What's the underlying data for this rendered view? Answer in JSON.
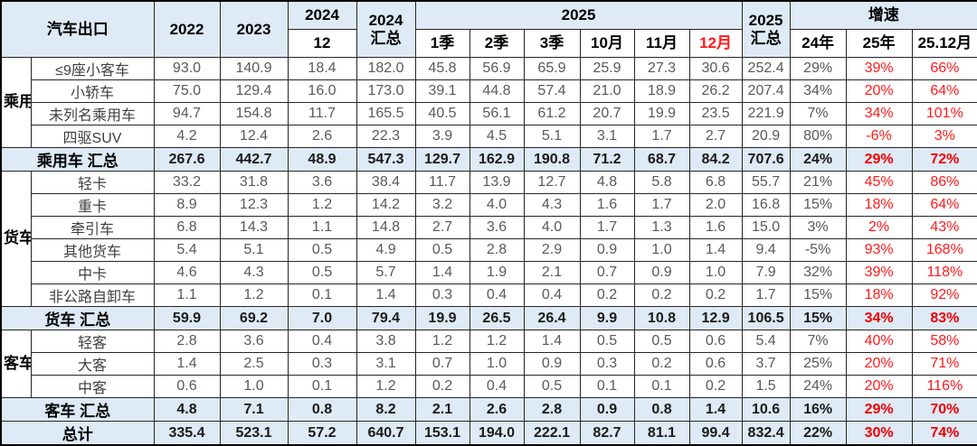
{
  "colors": {
    "header_bg": "#deeaf6",
    "summary_bg": "#deeaf6",
    "accent_red": "#ff1a1a",
    "number_gray": "#595959",
    "border": "#262626"
  },
  "chart_data": {
    "type": "table",
    "title": "汽车出口",
    "header": {
      "corner": "汽车出口",
      "y2022": "2022",
      "y2023": "2023",
      "y2024": "2024",
      "y2024_sub": "12",
      "y2024_total_l1": "2024",
      "y2024_total_l2": "汇总",
      "y2025": "2025",
      "sub2025": [
        "1季",
        "2季",
        "3季",
        "10月",
        "11月",
        "12月"
      ],
      "y2025_total_l1": "2025",
      "y2025_total_l2": "汇总",
      "growth": "增速",
      "growth_sub": [
        "24年",
        "25年",
        "25.12月"
      ]
    },
    "column_keys": [
      "2022",
      "2023",
      "2024-12",
      "2024汇总",
      "2025-1季",
      "2025-2季",
      "2025-3季",
      "2025-10月",
      "2025-11月",
      "2025-12月",
      "2025汇总",
      "增速24年",
      "增速25年",
      "增速25.12月"
    ],
    "groups": [
      {
        "label": "乘用车",
        "start": 0,
        "span": 4
      },
      {
        "label": "货车",
        "start": 5,
        "span": 6
      },
      {
        "label": "客车",
        "start": 12,
        "span": 3
      }
    ],
    "rows": [
      {
        "label": "≤9座小客车",
        "summary": false,
        "values": [
          "93.0",
          "140.9",
          "18.4",
          "182.0",
          "45.8",
          "56.9",
          "65.9",
          "25.9",
          "27.3",
          "30.6",
          "252.4",
          "29%",
          "39%",
          "66%"
        ]
      },
      {
        "label": "小轿车",
        "summary": false,
        "values": [
          "75.0",
          "129.4",
          "16.0",
          "173.0",
          "39.1",
          "44.8",
          "57.4",
          "21.0",
          "18.9",
          "26.2",
          "207.4",
          "34%",
          "20%",
          "64%"
        ]
      },
      {
        "label": "未列名乘用车",
        "summary": false,
        "values": [
          "94.7",
          "154.8",
          "11.7",
          "165.5",
          "40.5",
          "56.1",
          "61.2",
          "20.7",
          "19.9",
          "23.5",
          "221.9",
          "7%",
          "34%",
          "101%"
        ]
      },
      {
        "label": "四驱SUV",
        "summary": false,
        "values": [
          "4.2",
          "12.4",
          "2.6",
          "22.3",
          "3.9",
          "4.5",
          "5.1",
          "3.1",
          "1.7",
          "2.7",
          "20.9",
          "80%",
          "-6%",
          "3%"
        ]
      },
      {
        "label": "乘用车 汇总",
        "summary": true,
        "values": [
          "267.6",
          "442.7",
          "48.9",
          "547.3",
          "129.7",
          "162.9",
          "190.8",
          "71.2",
          "68.7",
          "84.2",
          "707.6",
          "24%",
          "29%",
          "72%"
        ]
      },
      {
        "label": "轻卡",
        "summary": false,
        "values": [
          "33.2",
          "31.8",
          "3.6",
          "38.4",
          "11.7",
          "13.9",
          "12.7",
          "4.8",
          "5.8",
          "6.8",
          "55.7",
          "21%",
          "45%",
          "86%"
        ]
      },
      {
        "label": "重卡",
        "summary": false,
        "values": [
          "8.9",
          "12.3",
          "1.2",
          "14.2",
          "3.2",
          "4.0",
          "4.3",
          "1.6",
          "1.7",
          "2.0",
          "16.8",
          "15%",
          "18%",
          "64%"
        ]
      },
      {
        "label": "牵引车",
        "summary": false,
        "values": [
          "6.8",
          "14.3",
          "1.1",
          "14.8",
          "2.7",
          "3.6",
          "4.0",
          "1.7",
          "1.3",
          "1.6",
          "15.0",
          "3%",
          "2%",
          "43%"
        ]
      },
      {
        "label": "其他货车",
        "summary": false,
        "values": [
          "5.4",
          "5.1",
          "0.5",
          "4.9",
          "0.5",
          "2.8",
          "2.9",
          "0.9",
          "1.0",
          "1.4",
          "9.4",
          "-5%",
          "93%",
          "168%"
        ]
      },
      {
        "label": "中卡",
        "summary": false,
        "values": [
          "4.6",
          "4.3",
          "0.5",
          "5.7",
          "1.4",
          "1.9",
          "2.1",
          "0.7",
          "0.9",
          "1.0",
          "7.9",
          "32%",
          "39%",
          "118%"
        ]
      },
      {
        "label": "非公路自卸车",
        "summary": false,
        "values": [
          "1.1",
          "1.2",
          "0.1",
          "1.4",
          "0.3",
          "0.4",
          "0.4",
          "0.2",
          "0.2",
          "0.2",
          "1.7",
          "15%",
          "18%",
          "92%"
        ]
      },
      {
        "label": "货车 汇总",
        "summary": true,
        "values": [
          "59.9",
          "69.2",
          "7.0",
          "79.4",
          "19.9",
          "26.5",
          "26.4",
          "9.9",
          "10.8",
          "12.9",
          "106.5",
          "15%",
          "34%",
          "83%"
        ]
      },
      {
        "label": "轻客",
        "summary": false,
        "values": [
          "2.8",
          "3.6",
          "0.4",
          "3.8",
          "1.2",
          "1.2",
          "1.4",
          "0.5",
          "0.5",
          "0.6",
          "5.4",
          "7%",
          "40%",
          "58%"
        ]
      },
      {
        "label": "大客",
        "summary": false,
        "values": [
          "1.4",
          "2.5",
          "0.3",
          "3.1",
          "0.7",
          "1.0",
          "0.9",
          "0.3",
          "0.2",
          "0.6",
          "3.7",
          "25%",
          "20%",
          "71%"
        ]
      },
      {
        "label": "中客",
        "summary": false,
        "values": [
          "0.6",
          "1.0",
          "0.1",
          "1.2",
          "0.2",
          "0.4",
          "0.5",
          "0.1",
          "0.1",
          "0.2",
          "1.5",
          "24%",
          "20%",
          "116%"
        ]
      },
      {
        "label": "客车 汇总",
        "summary": true,
        "values": [
          "4.8",
          "7.1",
          "0.8",
          "8.2",
          "2.1",
          "2.6",
          "2.8",
          "0.9",
          "0.8",
          "1.4",
          "10.6",
          "16%",
          "29%",
          "70%"
        ]
      },
      {
        "label": "总计",
        "summary": true,
        "values": [
          "335.4",
          "523.1",
          "57.2",
          "640.7",
          "153.1",
          "194.0",
          "222.1",
          "82.7",
          "81.1",
          "99.4",
          "832.4",
          "22%",
          "30%",
          "74%"
        ]
      }
    ]
  }
}
